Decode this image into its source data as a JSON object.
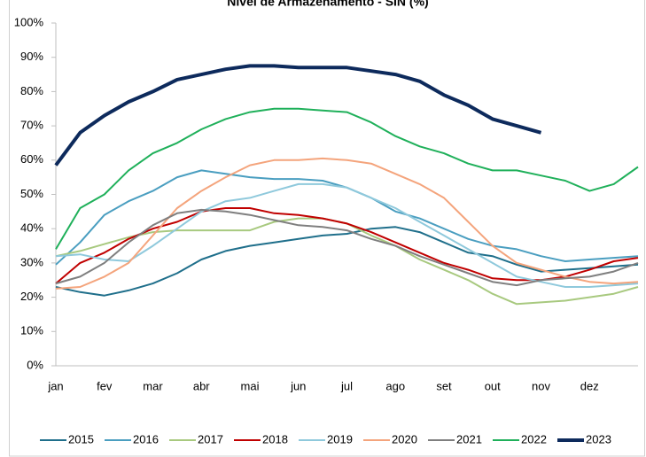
{
  "chart_data": {
    "type": "line",
    "title": "Nível de Armazenamento - SIN (%)",
    "categories": [
      "jan",
      null,
      "fev",
      null,
      "mar",
      null,
      "abr",
      null,
      "mai",
      null,
      "jun",
      null,
      "jul",
      null,
      "ago",
      null,
      "set",
      null,
      "out",
      null,
      "nov",
      null,
      "dez",
      null,
      null
    ],
    "ylim": [
      0,
      100
    ],
    "yticks": [
      {
        "value": 0,
        "label": "0%"
      },
      {
        "value": 10,
        "label": "10%"
      },
      {
        "value": 20,
        "label": "20%"
      },
      {
        "value": 30,
        "label": "30%"
      },
      {
        "value": 40,
        "label": "40%"
      },
      {
        "value": 50,
        "label": "50%"
      },
      {
        "value": 60,
        "label": "60%"
      },
      {
        "value": 70,
        "label": "70%"
      },
      {
        "value": 80,
        "label": "80%"
      },
      {
        "value": 90,
        "label": "90%"
      },
      {
        "value": 100,
        "label": "100%"
      }
    ],
    "grid": false,
    "legend": "bottom",
    "series": [
      {
        "name": "2015",
        "color": "#1f6f8b",
        "linewidth": 2,
        "values": [
          23,
          21.5,
          20.5,
          22,
          24,
          27,
          31,
          33.5,
          35,
          36,
          37,
          38,
          38.5,
          40,
          40.5,
          39,
          36,
          33,
          32,
          29.5,
          27.5,
          28,
          28.5,
          29,
          29.5
        ]
      },
      {
        "name": "2016",
        "color": "#4a9ec0",
        "linewidth": 2,
        "values": [
          29.5,
          36,
          44,
          48,
          51,
          55,
          57,
          56,
          55,
          54.5,
          54.5,
          54,
          52,
          49,
          45,
          43,
          40,
          37,
          35,
          34,
          32,
          30.5,
          31,
          31.5,
          32
        ]
      },
      {
        "name": "2017",
        "color": "#a8c97f",
        "linewidth": 2,
        "values": [
          32,
          33.5,
          35.5,
          37.5,
          39,
          39.5,
          39.5,
          39.5,
          39.5,
          42,
          43,
          43,
          41.5,
          38,
          35,
          31,
          28,
          25,
          21,
          18,
          18.5,
          19,
          20,
          21,
          23
        ]
      },
      {
        "name": "2018",
        "color": "#c00000",
        "linewidth": 2,
        "values": [
          24,
          30,
          33,
          37,
          40,
          42,
          45,
          46,
          46,
          44.5,
          44,
          43,
          41.5,
          39,
          36,
          33,
          30,
          28,
          25.5,
          25,
          25,
          26,
          28,
          30.5,
          31.5
        ]
      },
      {
        "name": "2019",
        "color": "#8fc9dc",
        "linewidth": 2,
        "values": [
          32,
          32.5,
          31,
          30.5,
          35,
          40,
          45,
          48,
          49,
          51,
          53,
          53,
          52,
          49,
          46,
          42,
          38,
          34,
          30,
          26,
          24.5,
          23,
          23,
          23.5,
          24
        ]
      },
      {
        "name": "2020",
        "color": "#f4a47c",
        "linewidth": 2,
        "values": [
          22.5,
          23,
          26,
          30,
          38,
          46,
          51,
          55,
          58.5,
          60,
          60,
          60.5,
          60,
          59,
          56,
          53,
          49,
          42,
          35,
          30,
          28,
          26,
          24.5,
          24,
          24.5
        ]
      },
      {
        "name": "2021",
        "color": "#7f7f7f",
        "linewidth": 2,
        "values": [
          24,
          26,
          30,
          36,
          41,
          44.5,
          45.5,
          45,
          44,
          42.5,
          41,
          40.5,
          39.5,
          37,
          35,
          32,
          29.5,
          27,
          24.5,
          23.5,
          25,
          25.5,
          26,
          27.5,
          30
        ]
      },
      {
        "name": "2022",
        "color": "#1fb05a",
        "linewidth": 2,
        "values": [
          34,
          46,
          50,
          57,
          62,
          65,
          69,
          72,
          74,
          75,
          75,
          74.5,
          74,
          71,
          67,
          64,
          62,
          59,
          57,
          57,
          55.5,
          54,
          51,
          53,
          58
        ]
      },
      {
        "name": "2023",
        "color": "#0d2a5c",
        "linewidth": 4,
        "values": [
          58.5,
          68,
          73,
          77,
          80,
          83.5,
          85,
          86.5,
          87.5,
          87.5,
          87,
          87,
          87,
          86,
          85,
          83,
          79,
          76,
          72,
          70,
          68,
          null,
          null,
          null,
          null
        ]
      }
    ]
  }
}
